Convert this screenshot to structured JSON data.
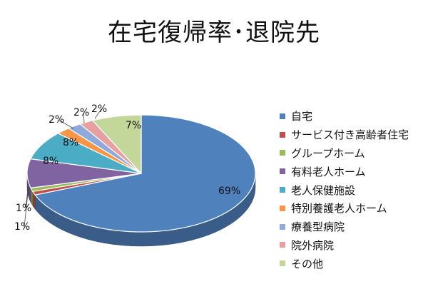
{
  "chart_data": {
    "type": "pie",
    "title": "在宅復帰率･退院先",
    "categories": [
      "自宅",
      "サービス付き高齢者住宅",
      "グループホーム",
      "有料老人ホーム",
      "老人保健施設",
      "特別養護老人ホーム",
      "療養型病院",
      "院外病院",
      "その他"
    ],
    "values": [
      69,
      1,
      1,
      8,
      8,
      2,
      2,
      2,
      7
    ],
    "data_labels": [
      "69%",
      "1%",
      "1%",
      "8%",
      "8%",
      "2%",
      "2%",
      "2%",
      "7%"
    ],
    "colors": [
      "#4F81BD",
      "#C0504D",
      "#9BBB59",
      "#8064A2",
      "#4BACC6",
      "#F79646",
      "#8EA9DB",
      "#E6A0A0",
      "#C4D79B"
    ],
    "three_d": true,
    "legend_position": "right"
  }
}
